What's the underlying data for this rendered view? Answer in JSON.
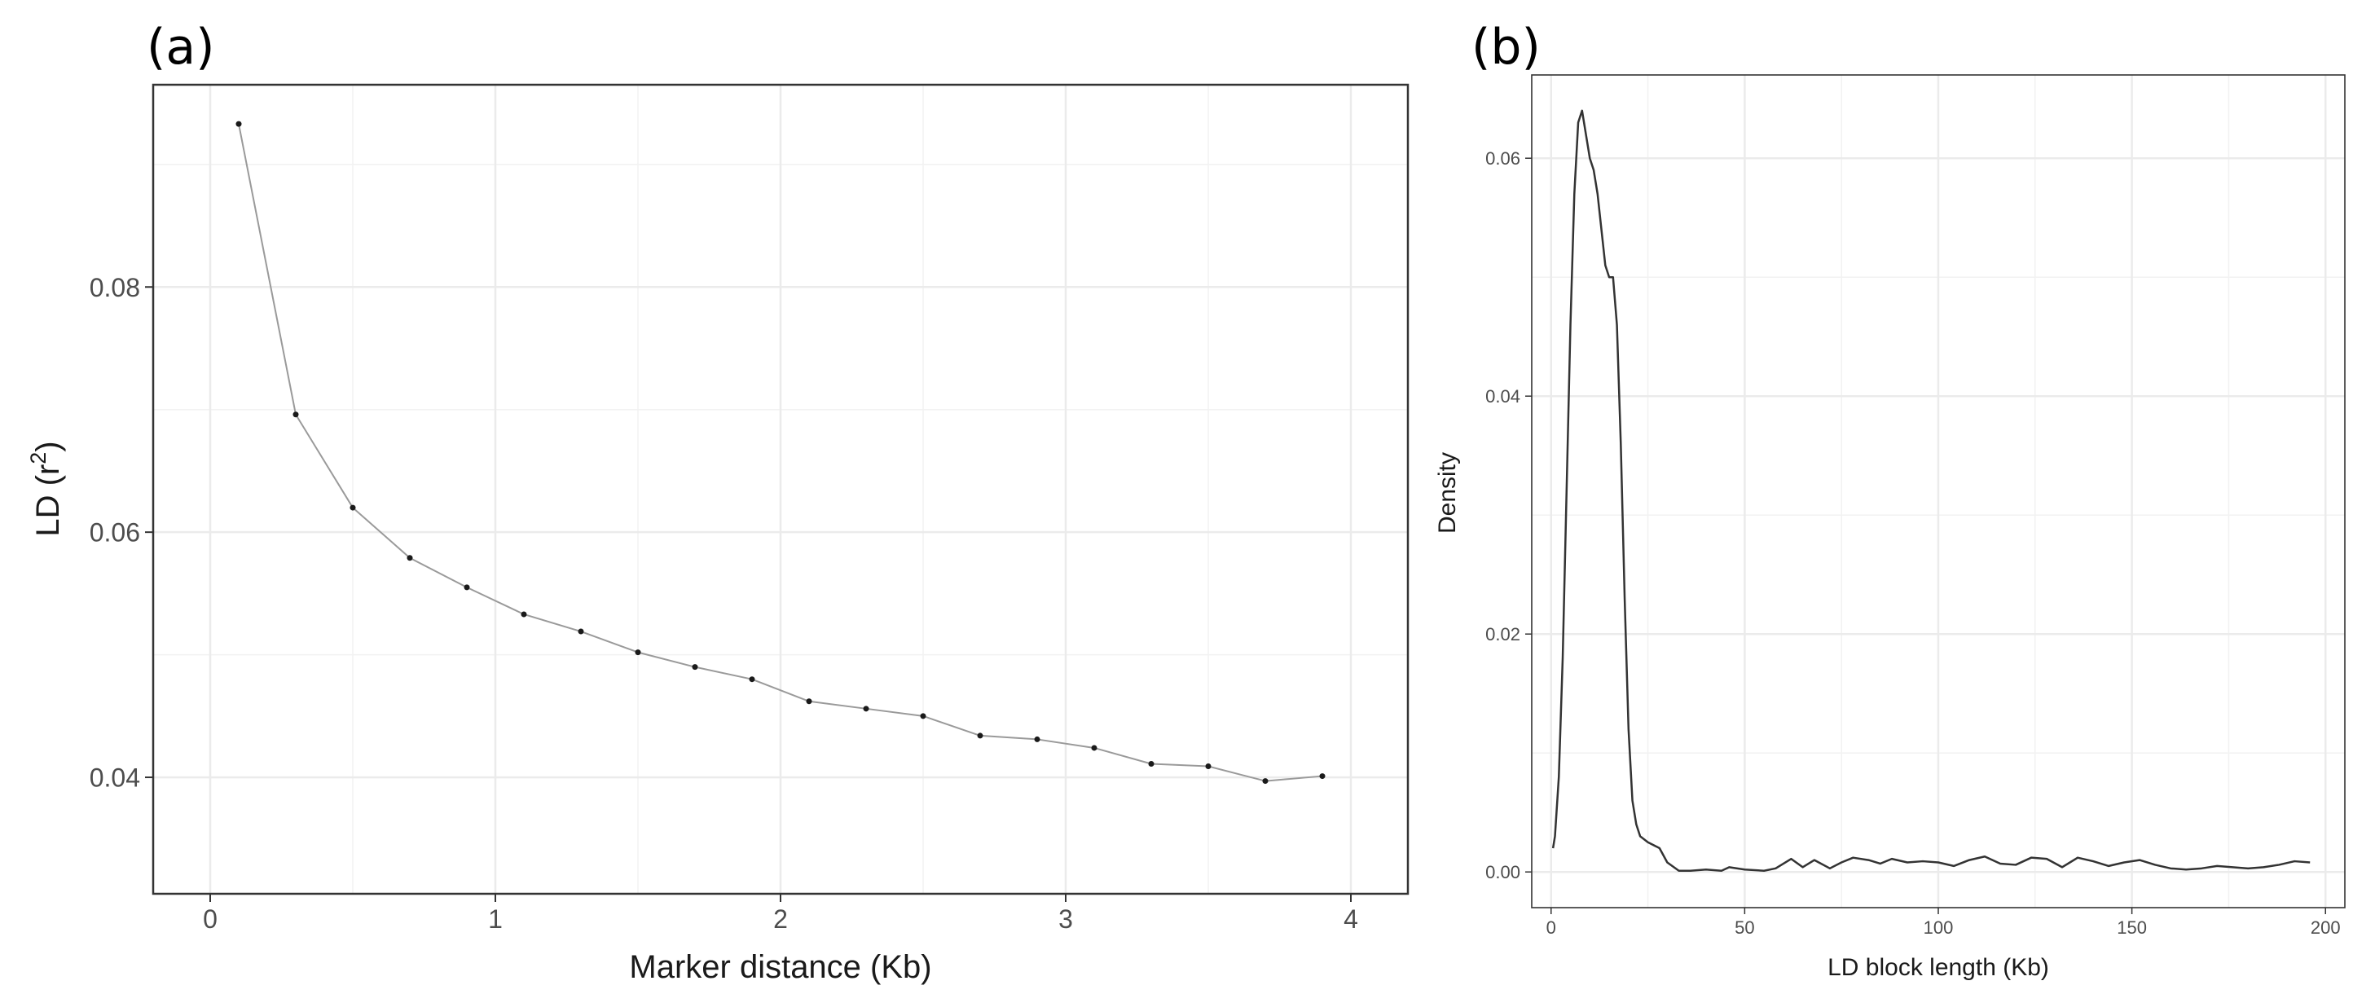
{
  "panels": {
    "a": {
      "label": "(a)"
    },
    "b": {
      "label": "(b)"
    }
  },
  "chart_data": [
    {
      "type": "line",
      "xlabel": "Marker distance (Kb)",
      "ylabel_main": "LD (r",
      "ylabel_sup": "2",
      "ylabel_close": ")",
      "xlim": [
        -0.2,
        4.2
      ],
      "ylim": [
        0.0305,
        0.0965
      ],
      "x_ticks": [
        0,
        1,
        2,
        3,
        4
      ],
      "x_tick_labels": [
        "0",
        "1",
        "2",
        "3",
        "4"
      ],
      "y_ticks": [
        0.04,
        0.06,
        0.08
      ],
      "y_tick_labels": [
        "0.04",
        "0.06",
        "0.08"
      ],
      "grid": true,
      "series": [
        {
          "x": [
            0.1,
            0.3,
            0.5,
            0.7,
            0.9,
            1.1,
            1.3,
            1.5,
            1.7,
            1.9,
            2.1,
            2.3,
            2.5,
            2.7,
            2.9,
            3.1,
            3.3,
            3.5,
            3.7,
            3.9
          ],
          "y": [
            0.0933,
            0.0696,
            0.062,
            0.0579,
            0.0555,
            0.0533,
            0.0519,
            0.0502,
            0.049,
            0.048,
            0.0462,
            0.0456,
            0.045,
            0.0434,
            0.0431,
            0.0424,
            0.0411,
            0.0409,
            0.0397,
            0.0401
          ]
        }
      ]
    },
    {
      "type": "area",
      "xlabel": "LD block length (Kb)",
      "ylabel": "Density",
      "xlim": [
        -5,
        205
      ],
      "ylim": [
        -0.003,
        0.067
      ],
      "x_ticks": [
        0,
        50,
        100,
        150,
        200
      ],
      "x_tick_labels": [
        "0",
        "50",
        "100",
        "150",
        "200"
      ],
      "y_ticks": [
        0,
        0.02,
        0.04,
        0.06
      ],
      "y_tick_labels": [
        "0.00",
        "0.02",
        "0.04",
        "0.06"
      ],
      "grid": true,
      "series": [
        {
          "x": [
            0.5,
            1,
            2,
            3,
            4,
            5,
            6,
            7,
            8,
            9,
            10,
            11,
            12,
            13,
            14,
            15,
            16,
            17,
            18,
            19,
            20,
            21,
            22,
            23,
            25,
            28,
            30,
            33,
            36,
            40,
            44,
            46,
            50,
            55,
            58,
            62,
            65,
            68,
            72,
            75,
            78,
            82,
            85,
            88,
            92,
            96,
            100,
            104,
            108,
            112,
            116,
            120,
            124,
            128,
            132,
            136,
            140,
            144,
            148,
            152,
            156,
            160,
            164,
            168,
            172,
            176,
            180,
            184,
            188,
            192,
            196
          ],
          "y": [
            0.002,
            0.003,
            0.008,
            0.018,
            0.032,
            0.046,
            0.057,
            0.063,
            0.064,
            0.062,
            0.06,
            0.059,
            0.057,
            0.054,
            0.051,
            0.05,
            0.05,
            0.046,
            0.036,
            0.023,
            0.012,
            0.006,
            0.004,
            0.003,
            0.0025,
            0.002,
            0.0008,
            0.0001,
            0.0001,
            0.0002,
            0.0001,
            0.0004,
            0.0002,
            0.0001,
            0.0003,
            0.0011,
            0.0004,
            0.001,
            0.0003,
            0.0008,
            0.0012,
            0.001,
            0.0007,
            0.0011,
            0.0008,
            0.0009,
            0.0008,
            0.0005,
            0.001,
            0.0013,
            0.0007,
            0.0006,
            0.0012,
            0.0011,
            0.0004,
            0.0012,
            0.0009,
            0.0005,
            0.0008,
            0.001,
            0.0006,
            0.0003,
            0.0002,
            0.0003,
            0.0005,
            0.0004,
            0.0003,
            0.0004,
            0.0006,
            0.0009,
            0.0008
          ]
        }
      ]
    }
  ]
}
